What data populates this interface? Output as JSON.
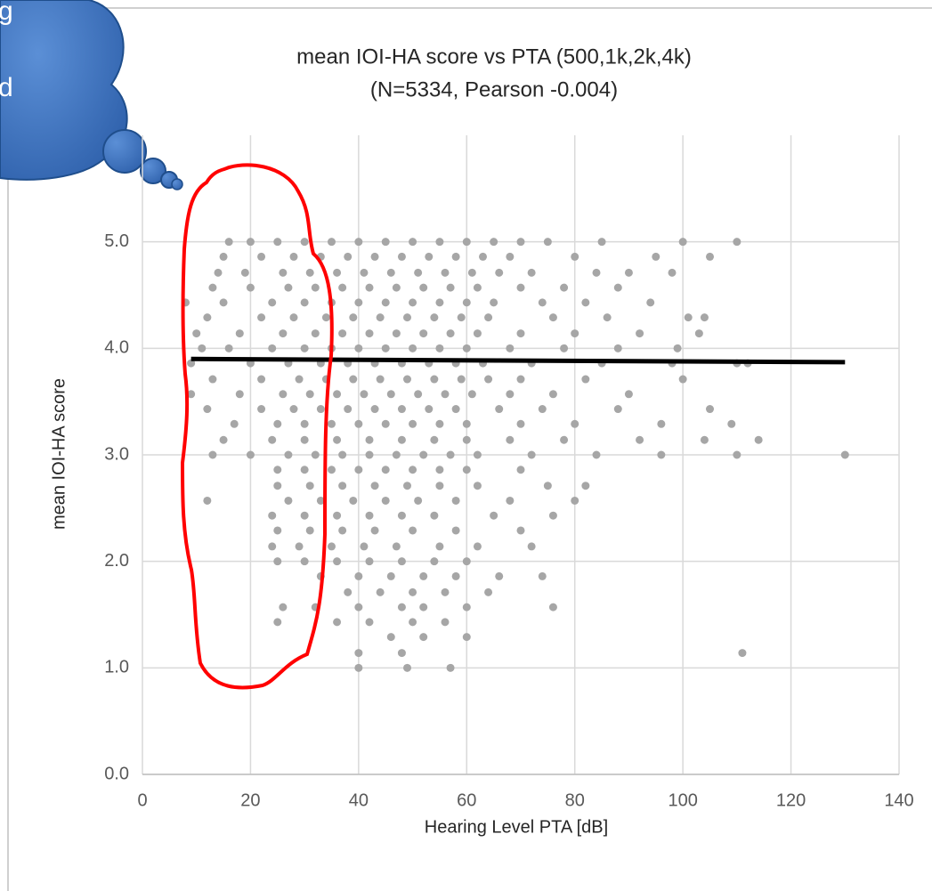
{
  "chart_data": {
    "type": "scatter",
    "title": "mean IOI-HA score vs PTA (500,1k,2k,4k)",
    "subtitle": "(N=5334, Pearson -0.004)",
    "x_label": "Hearing Level PTA [dB]",
    "y_label": "mean IOI-HA score",
    "color": "#a6a6a6",
    "grid": true,
    "xlim": [
      0,
      140
    ],
    "ylim": [
      0,
      6
    ],
    "xticks": [
      0,
      20,
      40,
      60,
      80,
      100,
      120,
      140
    ],
    "yticks": [
      {
        "value": 0,
        "label": "0.0"
      },
      {
        "value": 1,
        "label": "1.0"
      },
      {
        "value": 2,
        "label": "2.0"
      },
      {
        "value": 3,
        "label": "3.0"
      },
      {
        "value": 4,
        "label": "4.0"
      },
      {
        "value": 5,
        "label": "5.0"
      }
    ],
    "x": [
      16,
      20,
      25,
      30,
      35,
      40,
      45,
      50,
      55,
      60,
      65,
      70,
      75,
      85,
      100,
      110,
      15,
      22,
      28,
      33,
      38,
      43,
      48,
      53,
      58,
      63,
      68,
      80,
      95,
      105,
      14,
      19,
      26,
      31,
      36,
      41,
      46,
      51,
      56,
      61,
      66,
      72,
      84,
      90,
      98,
      13,
      20,
      27,
      32,
      37,
      42,
      47,
      52,
      57,
      62,
      70,
      78,
      88,
      8,
      15,
      24,
      30,
      35,
      40,
      45,
      50,
      55,
      60,
      65,
      74,
      82,
      94,
      12,
      22,
      28,
      34,
      39,
      44,
      49,
      54,
      59,
      64,
      76,
      86,
      101,
      104,
      10,
      18,
      26,
      32,
      37,
      42,
      47,
      52,
      57,
      62,
      70,
      80,
      92,
      103,
      11,
      16,
      24,
      30,
      35,
      40,
      45,
      50,
      55,
      60,
      68,
      78,
      88,
      99,
      9,
      20,
      27,
      33,
      38,
      43,
      48,
      53,
      58,
      63,
      72,
      85,
      98,
      110,
      112,
      13,
      22,
      29,
      34,
      39,
      44,
      49,
      54,
      59,
      64,
      70,
      82,
      100,
      9,
      18,
      26,
      31,
      36,
      41,
      46,
      51,
      56,
      61,
      68,
      76,
      90,
      12,
      22,
      28,
      33,
      38,
      43,
      48,
      53,
      58,
      66,
      74,
      88,
      105,
      17,
      25,
      30,
      35,
      40,
      45,
      50,
      55,
      60,
      70,
      80,
      96,
      109,
      15,
      24,
      30,
      36,
      42,
      48,
      54,
      60,
      68,
      78,
      92,
      104,
      114,
      13,
      20,
      27,
      32,
      37,
      42,
      47,
      52,
      57,
      62,
      72,
      84,
      96,
      110,
      130,
      25,
      30,
      35,
      40,
      45,
      50,
      55,
      60,
      70,
      25,
      31,
      37,
      43,
      49,
      55,
      62,
      75,
      82,
      12,
      27,
      33,
      39,
      45,
      51,
      58,
      68,
      80,
      24,
      30,
      36,
      42,
      48,
      54,
      65,
      76,
      25,
      31,
      37,
      43,
      50,
      58,
      70,
      24,
      29,
      35,
      41,
      47,
      55,
      62,
      72,
      25,
      30,
      36,
      42,
      48,
      54,
      60,
      33,
      40,
      46,
      52,
      58,
      66,
      74,
      38,
      44,
      50,
      56,
      64,
      26,
      32,
      40,
      48,
      52,
      60,
      76,
      25,
      36,
      42,
      50,
      56,
      46,
      52,
      60,
      40,
      48,
      111,
      40,
      49,
      57
    ],
    "values": [
      5,
      5,
      5,
      5,
      5,
      5,
      5,
      5,
      5,
      5,
      5,
      5,
      5,
      5,
      5,
      5,
      4.86,
      4.86,
      4.86,
      4.86,
      4.86,
      4.86,
      4.86,
      4.86,
      4.86,
      4.86,
      4.86,
      4.86,
      4.86,
      4.86,
      4.71,
      4.71,
      4.71,
      4.71,
      4.71,
      4.71,
      4.71,
      4.71,
      4.71,
      4.71,
      4.71,
      4.71,
      4.71,
      4.71,
      4.71,
      4.57,
      4.57,
      4.57,
      4.57,
      4.57,
      4.57,
      4.57,
      4.57,
      4.57,
      4.57,
      4.57,
      4.57,
      4.57,
      4.43,
      4.43,
      4.43,
      4.43,
      4.43,
      4.43,
      4.43,
      4.43,
      4.43,
      4.43,
      4.43,
      4.43,
      4.43,
      4.43,
      4.29,
      4.29,
      4.29,
      4.29,
      4.29,
      4.29,
      4.29,
      4.29,
      4.29,
      4.29,
      4.29,
      4.29,
      4.29,
      4.29,
      4.14,
      4.14,
      4.14,
      4.14,
      4.14,
      4.14,
      4.14,
      4.14,
      4.14,
      4.14,
      4.14,
      4.14,
      4.14,
      4.14,
      4,
      4,
      4,
      4,
      4,
      4,
      4,
      4,
      4,
      4,
      4,
      4,
      4,
      4,
      3.86,
      3.86,
      3.86,
      3.86,
      3.86,
      3.86,
      3.86,
      3.86,
      3.86,
      3.86,
      3.86,
      3.86,
      3.86,
      3.86,
      3.86,
      3.71,
      3.71,
      3.71,
      3.71,
      3.71,
      3.71,
      3.71,
      3.71,
      3.71,
      3.71,
      3.71,
      3.71,
      3.71,
      3.57,
      3.57,
      3.57,
      3.57,
      3.57,
      3.57,
      3.57,
      3.57,
      3.57,
      3.57,
      3.57,
      3.57,
      3.57,
      3.43,
      3.43,
      3.43,
      3.43,
      3.43,
      3.43,
      3.43,
      3.43,
      3.43,
      3.43,
      3.43,
      3.43,
      3.43,
      3.29,
      3.29,
      3.29,
      3.29,
      3.29,
      3.29,
      3.29,
      3.29,
      3.29,
      3.29,
      3.29,
      3.29,
      3.29,
      3.14,
      3.14,
      3.14,
      3.14,
      3.14,
      3.14,
      3.14,
      3.14,
      3.14,
      3.14,
      3.14,
      3.14,
      3.14,
      3,
      3,
      3,
      3,
      3,
      3,
      3,
      3,
      3,
      3,
      3,
      3,
      3,
      3,
      3,
      2.86,
      2.86,
      2.86,
      2.86,
      2.86,
      2.86,
      2.86,
      2.86,
      2.86,
      2.71,
      2.71,
      2.71,
      2.71,
      2.71,
      2.71,
      2.71,
      2.71,
      2.71,
      2.57,
      2.57,
      2.57,
      2.57,
      2.57,
      2.57,
      2.57,
      2.57,
      2.57,
      2.43,
      2.43,
      2.43,
      2.43,
      2.43,
      2.43,
      2.43,
      2.43,
      2.29,
      2.29,
      2.29,
      2.29,
      2.29,
      2.29,
      2.29,
      2.14,
      2.14,
      2.14,
      2.14,
      2.14,
      2.14,
      2.14,
      2.14,
      2,
      2,
      2,
      2,
      2,
      2,
      2,
      1.86,
      1.86,
      1.86,
      1.86,
      1.86,
      1.86,
      1.86,
      1.71,
      1.71,
      1.71,
      1.71,
      1.71,
      1.57,
      1.57,
      1.57,
      1.57,
      1.57,
      1.57,
      1.57,
      1.43,
      1.43,
      1.43,
      1.43,
      1.43,
      1.29,
      1.29,
      1.29,
      1.14,
      1.14,
      1.14,
      1,
      1,
      1
    ],
    "trendline": {
      "color": "#000000",
      "x": [
        9,
        130
      ],
      "values": [
        3.9,
        3.87
      ]
    },
    "callout": {
      "lines": [
        "g",
        "d"
      ]
    }
  }
}
